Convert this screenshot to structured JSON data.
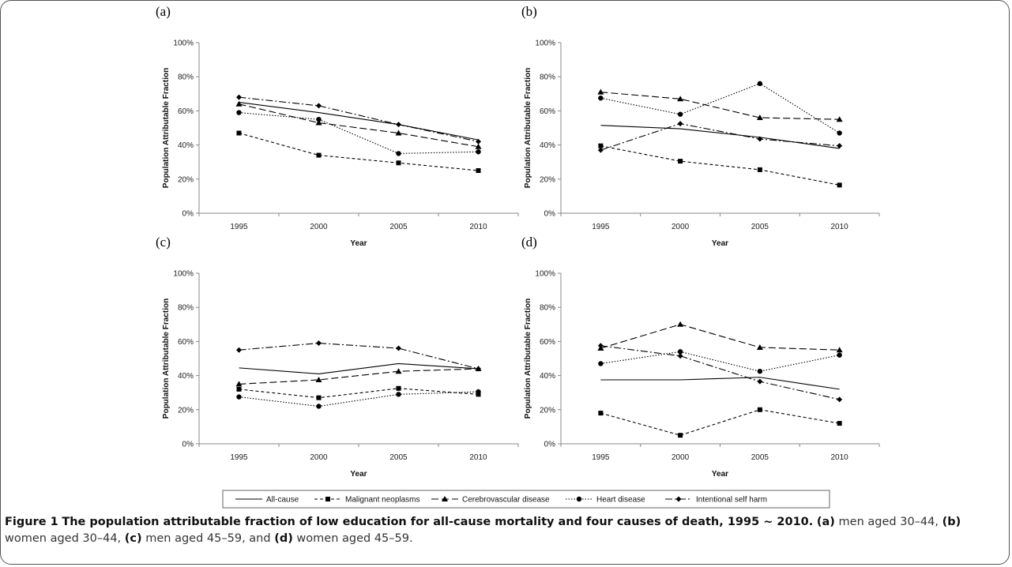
{
  "caption": {
    "figure_label": "Figure 1",
    "title": "The population attributable fraction of low education for all-cause mortality and four causes of death, 1995 ~ 2010.",
    "parts": [
      {
        "label": "(a)",
        "text": " men aged 30–44, "
      },
      {
        "label": "(b)",
        "text": " women aged 30–44, "
      },
      {
        "label": "(c)",
        "text": " men aged 45–59, and "
      },
      {
        "label": "(d)",
        "text": " women aged 45–59."
      }
    ]
  },
  "legend": [
    {
      "name": "All-cause",
      "dash": "",
      "marker": "none"
    },
    {
      "name": "Malignant neoplasms",
      "dash": "4,3",
      "marker": "square"
    },
    {
      "name": "Cerebrovascular disease",
      "dash": "9,4",
      "marker": "triangle"
    },
    {
      "name": "Heart disease",
      "dash": "1.5,2",
      "marker": "circle"
    },
    {
      "name": "Intentional self harm",
      "dash": "9,3,2,3",
      "marker": "diamond"
    }
  ],
  "chart_data": [
    {
      "type": "line",
      "panel": "(a)",
      "x": [
        "1995",
        "2000",
        "2005",
        "2010"
      ],
      "xlabel": "Year",
      "ylabel": "Population Attributable Fraction",
      "ylim": [
        0,
        100
      ],
      "yticks": [
        "0%",
        "20%",
        "40%",
        "60%",
        "80%",
        "100%"
      ],
      "series": [
        {
          "name": "All-cause",
          "values": [
            65,
            59,
            52,
            43
          ]
        },
        {
          "name": "Malignant neoplasms",
          "values": [
            47,
            34,
            29.5,
            25
          ]
        },
        {
          "name": "Cerebrovascular disease",
          "values": [
            64,
            53,
            47,
            39
          ]
        },
        {
          "name": "Heart disease",
          "values": [
            59,
            55,
            35,
            36
          ]
        },
        {
          "name": "Intentional self harm",
          "values": [
            68,
            63,
            52,
            42
          ]
        }
      ]
    },
    {
      "type": "line",
      "panel": "(b)",
      "x": [
        "1995",
        "2000",
        "2005",
        "2010"
      ],
      "xlabel": "Year",
      "ylabel": "Population Attributable Fraction",
      "ylim": [
        0,
        100
      ],
      "yticks": [
        "0%",
        "20%",
        "40%",
        "60%",
        "80%",
        "100%"
      ],
      "series": [
        {
          "name": "All-cause",
          "values": [
            51.5,
            49.5,
            44.5,
            38
          ]
        },
        {
          "name": "Malignant neoplasms",
          "values": [
            39.5,
            30.5,
            25.5,
            16.5
          ]
        },
        {
          "name": "Cerebrovascular disease",
          "values": [
            71,
            67,
            56,
            55
          ]
        },
        {
          "name": "Heart disease",
          "values": [
            67.5,
            58,
            76,
            47
          ]
        },
        {
          "name": "Intentional self harm",
          "values": [
            37,
            52.5,
            43.5,
            39.5
          ]
        }
      ]
    },
    {
      "type": "line",
      "panel": "(c)",
      "x": [
        "1995",
        "2000",
        "2005",
        "2010"
      ],
      "xlabel": "Year",
      "ylabel": "Population Attributable Fraction",
      "ylim": [
        0,
        100
      ],
      "yticks": [
        "0%",
        "20%",
        "40%",
        "60%",
        "80%",
        "100%"
      ],
      "series": [
        {
          "name": "All-cause",
          "values": [
            44.5,
            41,
            47,
            44
          ]
        },
        {
          "name": "Malignant neoplasms",
          "values": [
            32,
            27,
            32.5,
            29
          ]
        },
        {
          "name": "Cerebrovascular disease",
          "values": [
            35,
            37.5,
            42.5,
            44
          ]
        },
        {
          "name": "Heart disease",
          "values": [
            27.5,
            22,
            29,
            30.5
          ]
        },
        {
          "name": "Intentional self harm",
          "values": [
            55,
            59,
            56,
            44
          ]
        }
      ]
    },
    {
      "type": "line",
      "panel": "(d)",
      "x": [
        "1995",
        "2000",
        "2005",
        "2010"
      ],
      "xlabel": "Year",
      "ylabel": "Population Attributable Fraction",
      "ylim": [
        0,
        100
      ],
      "yticks": [
        "0%",
        "20%",
        "40%",
        "60%",
        "80%",
        "100%"
      ],
      "series": [
        {
          "name": "All-cause",
          "values": [
            37.5,
            37.5,
            39,
            32
          ]
        },
        {
          "name": "Malignant neoplasms",
          "values": [
            18,
            5,
            20,
            12
          ]
        },
        {
          "name": "Cerebrovascular disease",
          "values": [
            56,
            70,
            56.5,
            55
          ]
        },
        {
          "name": "Heart disease",
          "values": [
            47,
            54,
            42.5,
            52
          ]
        },
        {
          "name": "Intentional self harm",
          "values": [
            57.5,
            51.5,
            36.5,
            26
          ]
        }
      ]
    }
  ]
}
